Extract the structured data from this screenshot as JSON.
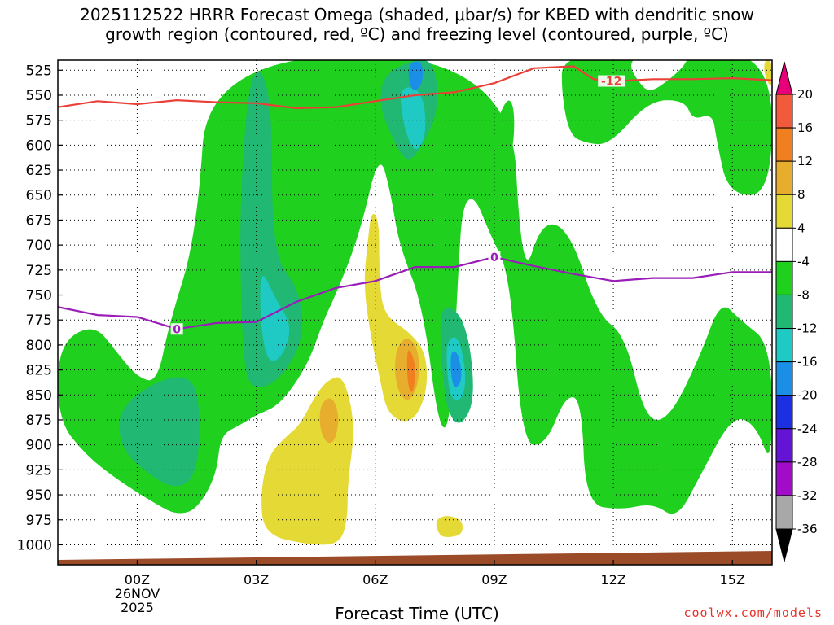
{
  "title_line1": "2025112522 HRRR Forecast Omega (shaded, μbar/s) for KBED with dendritic snow",
  "title_line2": "growth region (contoured, red, ºC) and freezing level (contoured, purple, ºC)",
  "xlabel": "Forecast Time (UTC)",
  "credit": "coolwx.com/models",
  "chart_data": {
    "type": "heatmap",
    "y_ticks": [
      "525",
      "550",
      "575",
      "600",
      "625",
      "650",
      "675",
      "700",
      "725",
      "750",
      "775",
      "800",
      "825",
      "850",
      "875",
      "900",
      "925",
      "950",
      "975",
      "1000"
    ],
    "ylim": [
      1020,
      515
    ],
    "x_ticks": [
      {
        "hour": 0,
        "label": "00Z",
        "sub1": "26NOV",
        "sub2": "2025"
      },
      {
        "hour": 3,
        "label": "03Z"
      },
      {
        "hour": 6,
        "label": "06Z"
      },
      {
        "hour": 9,
        "label": "09Z"
      },
      {
        "hour": 12,
        "label": "12Z"
      },
      {
        "hour": 15,
        "label": "15Z"
      }
    ],
    "xlim": [
      -2,
      16
    ],
    "grid": true,
    "colorbar": {
      "labels": [
        "20",
        "16",
        "12",
        "8",
        "4",
        "-4",
        "-8",
        "-12",
        "-16",
        "-20",
        "-24",
        "-28",
        "-32",
        "-36"
      ],
      "colors": [
        "#e8007a",
        "#f25a3c",
        "#f0801f",
        "#e7ae2e",
        "#e5da35",
        "#ffffff",
        "#1fd01f",
        "#21b873",
        "#1fc9c4",
        "#1b8fe6",
        "#1b30e0",
        "#6314d4",
        "#a10cc9",
        "#a8a8a8",
        "#000000"
      ]
    },
    "contour_labels": [
      {
        "text": "-12",
        "color": "#ea4038"
      },
      {
        "text": "0",
        "color": "#9a1cb8"
      },
      {
        "text": "0",
        "color": "#9a1cb8"
      }
    ],
    "dgz_minus12": {
      "name": "-12",
      "color": "#ea4038",
      "x": [
        -2,
        -1,
        0,
        1,
        2,
        3,
        4,
        5,
        6,
        7,
        8,
        9,
        10,
        11,
        11.5,
        12,
        13,
        14,
        15,
        16
      ],
      "y": [
        562,
        556,
        559,
        555,
        557,
        558,
        563,
        562,
        556,
        550,
        547,
        538,
        523,
        521,
        534,
        536,
        534,
        534,
        533,
        535
      ]
    },
    "freezing_level": {
      "name": "0",
      "color": "#9a1cb8",
      "x": [
        -2,
        -1,
        0,
        1,
        2,
        3,
        4,
        5,
        6,
        7,
        8,
        9,
        10,
        11,
        12,
        13,
        14,
        15,
        16
      ],
      "y": [
        762,
        770,
        772,
        784,
        778,
        777,
        757,
        743,
        736,
        722,
        722,
        712,
        721,
        729,
        736,
        733,
        733,
        727,
        727
      ]
    },
    "ground_color": "#9b4b28",
    "omega_regions": [
      {
        "level": "-6",
        "color": "#1fd01f",
        "points": [
          [
            -2,
            800
          ],
          [
            -1.1,
            778
          ],
          [
            -0.5,
            808
          ],
          [
            0,
            832
          ],
          [
            0.5,
            838
          ],
          [
            0.8,
            780
          ],
          [
            1.5,
            690
          ],
          [
            1.8,
            510
          ],
          [
            9.4,
            510
          ],
          [
            9.7,
            740
          ],
          [
            10.2,
            675
          ],
          [
            10.9,
            685
          ],
          [
            11.6,
            770
          ],
          [
            12.3,
            790
          ],
          [
            12.8,
            875
          ],
          [
            13.4,
            875
          ],
          [
            14.2,
            810
          ],
          [
            14.7,
            755
          ],
          [
            15.2,
            775
          ],
          [
            16,
            800
          ],
          [
            16,
            925
          ],
          [
            15.6,
            880
          ],
          [
            15,
            870
          ],
          [
            14.2,
            930
          ],
          [
            13.6,
            975
          ],
          [
            13,
            958
          ],
          [
            12.2,
            965
          ],
          [
            11.3,
            960
          ],
          [
            11.2,
            855
          ],
          [
            10.8,
            850
          ],
          [
            10.3,
            900
          ],
          [
            9.7,
            900
          ],
          [
            9.4,
            730
          ],
          [
            8.9,
            690
          ],
          [
            8.5,
            650
          ],
          [
            8.2,
            660
          ],
          [
            8.1,
            720
          ],
          [
            7.9,
            880
          ],
          [
            7.6,
            885
          ],
          [
            7.2,
            760
          ],
          [
            6.6,
            700
          ],
          [
            6.4,
            650
          ],
          [
            6.1,
            605
          ],
          [
            5.6,
            690
          ],
          [
            5,
            750
          ],
          [
            4.7,
            775
          ],
          [
            4.3,
            820
          ],
          [
            3.6,
            860
          ],
          [
            3,
            870
          ],
          [
            2.6,
            880
          ],
          [
            2.1,
            890
          ],
          [
            2,
            930
          ],
          [
            1.5,
            965
          ],
          [
            1,
            970
          ],
          [
            0.5,
            960
          ],
          [
            -0.5,
            935
          ],
          [
            -1.3,
            910
          ],
          [
            -2,
            875
          ]
        ]
      },
      {
        "level": "-6b",
        "color": "#1fd01f",
        "points": [
          [
            10.7,
            510
          ],
          [
            12.6,
            510
          ],
          [
            12.4,
            520
          ],
          [
            12.6,
            535
          ],
          [
            12.9,
            548
          ],
          [
            13.4,
            535
          ],
          [
            13.8,
            520
          ],
          [
            13.9,
            510
          ],
          [
            16,
            510
          ],
          [
            16,
            650
          ],
          [
            14.9,
            650
          ],
          [
            14.6,
            595
          ],
          [
            14.5,
            568
          ],
          [
            14,
            575
          ],
          [
            13.8,
            555
          ],
          [
            12.9,
            555
          ],
          [
            11.9,
            600
          ],
          [
            11.3,
            598
          ],
          [
            10.9,
            590
          ],
          [
            10.7,
            550
          ]
        ]
      },
      {
        "level": "-6c",
        "color": "#1fd01f",
        "points": [
          [
            8.9,
            595
          ],
          [
            9.3,
            552
          ],
          [
            9.5,
            560
          ],
          [
            9.5,
            598
          ],
          [
            9.3,
            625
          ],
          [
            9,
            615
          ]
        ]
      },
      {
        "level": "-10",
        "color": "#21b873",
        "points": [
          [
            -0.5,
            865
          ],
          [
            0.5,
            835
          ],
          [
            1.4,
            830
          ],
          [
            1.6,
            870
          ],
          [
            1.5,
            930
          ],
          [
            1,
            945
          ],
          [
            0.3,
            930
          ],
          [
            -0.4,
            905
          ]
        ]
      },
      {
        "level": "-10b",
        "color": "#21b873",
        "points": [
          [
            2.6,
            650
          ],
          [
            2.8,
            540
          ],
          [
            3.1,
            520
          ],
          [
            3.4,
            560
          ],
          [
            3.4,
            710
          ],
          [
            4.1,
            745
          ],
          [
            4.2,
            795
          ],
          [
            3.6,
            835
          ],
          [
            3,
            845
          ],
          [
            2.7,
            830
          ],
          [
            2.6,
            740
          ]
        ]
      },
      {
        "level": "-10c",
        "color": "#21b873",
        "points": [
          [
            6.2,
            530
          ],
          [
            6.9,
            515
          ],
          [
            7.5,
            515
          ],
          [
            7.6,
            565
          ],
          [
            7.2,
            600
          ],
          [
            6.8,
            620
          ],
          [
            6.4,
            590
          ],
          [
            6.1,
            560
          ]
        ]
      },
      {
        "level": "-10d",
        "color": "#21b873",
        "points": [
          [
            7.6,
            760
          ],
          [
            8.1,
            765
          ],
          [
            8.4,
            800
          ],
          [
            8.5,
            855
          ],
          [
            8.2,
            880
          ],
          [
            7.9,
            875
          ],
          [
            7.7,
            840
          ]
        ]
      },
      {
        "level": "-14",
        "color": "#1fc9c4",
        "points": [
          [
            3.1,
            720
          ],
          [
            3.5,
            755
          ],
          [
            3.9,
            780
          ],
          [
            3.7,
            810
          ],
          [
            3.3,
            820
          ],
          [
            3.1,
            780
          ]
        ]
      },
      {
        "level": "-14b",
        "color": "#1fc9c4",
        "points": [
          [
            6.6,
            540
          ],
          [
            7.2,
            545
          ],
          [
            7.3,
            590
          ],
          [
            7,
            610
          ],
          [
            6.7,
            580
          ]
        ]
      },
      {
        "level": "-14c",
        "color": "#1fc9c4",
        "points": [
          [
            7.8,
            795
          ],
          [
            8.1,
            790
          ],
          [
            8.3,
            830
          ],
          [
            8.2,
            855
          ],
          [
            7.9,
            855
          ],
          [
            7.8,
            825
          ]
        ]
      },
      {
        "level": "-18",
        "color": "#1b8fe6",
        "points": [
          [
            6.8,
            518
          ],
          [
            7.2,
            515
          ],
          [
            7.2,
            540
          ],
          [
            6.9,
            548
          ]
        ]
      },
      {
        "level": "-18b",
        "color": "#1b8fe6",
        "points": [
          [
            7.9,
            805
          ],
          [
            8.1,
            808
          ],
          [
            8.2,
            835
          ],
          [
            8,
            845
          ],
          [
            7.9,
            830
          ]
        ]
      },
      {
        "level": "6",
        "color": "#e5da35",
        "points": [
          [
            5.8,
            700
          ],
          [
            5.9,
            665
          ],
          [
            6.1,
            675
          ],
          [
            6.1,
            730
          ],
          [
            6.2,
            770
          ],
          [
            6.9,
            788
          ],
          [
            7.3,
            810
          ],
          [
            7.3,
            850
          ],
          [
            6.9,
            880
          ],
          [
            6.3,
            870
          ],
          [
            6.1,
            830
          ],
          [
            5.9,
            795
          ],
          [
            5.7,
            740
          ]
        ]
      },
      {
        "level": "6b",
        "color": "#e5da35",
        "points": [
          [
            3.2,
            990
          ],
          [
            4.3,
            1000
          ],
          [
            5.1,
            1000
          ],
          [
            5.3,
            975
          ],
          [
            5.3,
            940
          ],
          [
            5.5,
            880
          ],
          [
            5.2,
            830
          ],
          [
            4.8,
            835
          ],
          [
            4.5,
            850
          ],
          [
            4.1,
            880
          ],
          [
            3.8,
            890
          ],
          [
            3.3,
            910
          ],
          [
            3.1,
            950
          ]
        ]
      },
      {
        "level": "6c",
        "color": "#e5da35",
        "points": [
          [
            7.5,
            975
          ],
          [
            7.8,
            970
          ],
          [
            8.2,
            975
          ],
          [
            8.2,
            990
          ],
          [
            7.8,
            993
          ],
          [
            7.6,
            990
          ]
        ]
      },
      {
        "level": "6d",
        "color": "#e5da35",
        "points": [
          [
            15.8,
            515
          ],
          [
            16,
            515
          ],
          [
            16,
            545
          ],
          [
            15.8,
            530
          ]
        ]
      },
      {
        "level": "10",
        "color": "#e7ae2e",
        "points": [
          [
            6.5,
            805
          ],
          [
            6.8,
            790
          ],
          [
            7.1,
            805
          ],
          [
            7.1,
            840
          ],
          [
            6.8,
            860
          ],
          [
            6.5,
            840
          ]
        ]
      },
      {
        "level": "10b",
        "color": "#e7ae2e",
        "points": [
          [
            4.6,
            860
          ],
          [
            4.9,
            850
          ],
          [
            5.1,
            870
          ],
          [
            5,
            895
          ],
          [
            4.8,
            900
          ],
          [
            4.6,
            885
          ]
        ]
      },
      {
        "level": "14",
        "color": "#f0801f",
        "points": [
          [
            6.8,
            800
          ],
          [
            7,
            815
          ],
          [
            7,
            840
          ],
          [
            6.9,
            850
          ],
          [
            6.8,
            835
          ]
        ]
      }
    ]
  }
}
